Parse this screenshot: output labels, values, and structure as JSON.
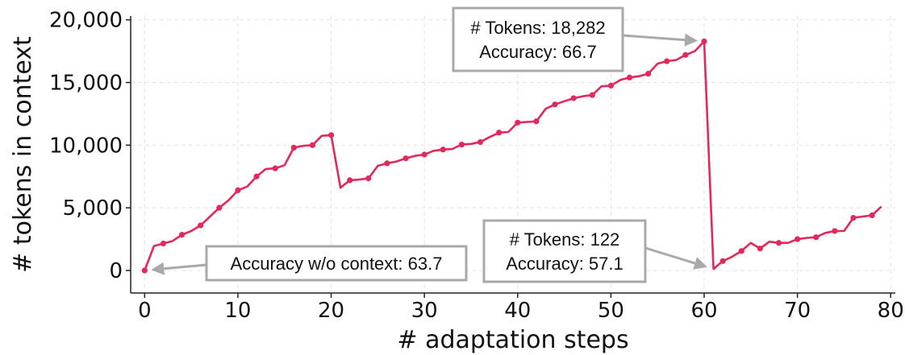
{
  "chart_data": {
    "type": "line",
    "xlabel": "# adaptation steps",
    "ylabel": "# tokens in context",
    "xlim": [
      -1.5,
      80.5
    ],
    "ylim": [
      -1800,
      20300
    ],
    "xticks": [
      0,
      10,
      20,
      30,
      40,
      50,
      60,
      70,
      80
    ],
    "yticks": [
      0,
      5000,
      10000,
      15000,
      20000
    ],
    "ytick_labels": [
      "0",
      "5,000",
      "10,000",
      "15,000",
      "20,000"
    ],
    "grid": true,
    "line_color": "#e3285b",
    "series": [
      {
        "x": [
          0,
          1,
          2,
          3,
          4,
          5,
          6,
          7,
          8,
          9,
          10,
          11,
          12,
          13,
          14,
          15,
          16,
          17,
          18,
          19,
          20,
          21,
          22,
          23,
          24,
          25,
          26,
          27,
          28,
          29,
          30,
          31,
          32,
          33,
          34,
          35,
          36,
          37,
          38,
          39,
          40,
          41,
          42,
          43,
          44,
          45,
          46,
          47,
          48,
          49,
          50,
          51,
          52,
          53,
          54,
          55,
          56,
          57,
          58,
          59,
          60,
          61,
          62,
          63,
          64,
          65,
          66,
          67,
          68,
          69,
          70,
          71,
          72,
          73,
          74,
          75,
          76,
          77,
          78,
          79
        ],
        "y": [
          0,
          1950,
          2150,
          2350,
          2850,
          3150,
          3600,
          4300,
          5000,
          5600,
          6400,
          6700,
          7500,
          8100,
          8150,
          8400,
          9800,
          9950,
          10000,
          10750,
          10800,
          6600,
          7200,
          7250,
          7350,
          8350,
          8550,
          8700,
          8950,
          9150,
          9250,
          9550,
          9650,
          9700,
          10050,
          10100,
          10250,
          10650,
          11000,
          11050,
          11800,
          11850,
          11900,
          12900,
          13250,
          13500,
          13750,
          13900,
          14000,
          14700,
          14750,
          15200,
          15400,
          15500,
          15700,
          16500,
          16700,
          16800,
          17200,
          17500,
          18282,
          122,
          750,
          1100,
          1550,
          2200,
          1750,
          2300,
          2200,
          2200,
          2500,
          2600,
          2650,
          3000,
          3150,
          3150,
          4200,
          4300,
          4400,
          5100
        ],
        "markers": [
          0,
          2,
          4,
          6,
          8,
          10,
          12,
          14,
          16,
          18,
          20,
          22,
          24,
          26,
          28,
          30,
          32,
          34,
          36,
          38,
          40,
          42,
          44,
          46,
          48,
          50,
          52,
          54,
          56,
          58,
          60,
          62,
          64,
          66,
          68,
          70,
          72,
          74,
          76,
          78
        ]
      }
    ],
    "annotations": [
      {
        "lines": [
          "# Tokens: 18,282",
          "Accuracy: 66.7"
        ],
        "target": [
          60,
          18282
        ]
      },
      {
        "lines": [
          "# Tokens: 122",
          "Accuracy: 57.1"
        ],
        "target": [
          61,
          122
        ]
      },
      {
        "lines": [
          "Accuracy w/o context: 63.7"
        ],
        "target": [
          0,
          0
        ]
      }
    ]
  }
}
